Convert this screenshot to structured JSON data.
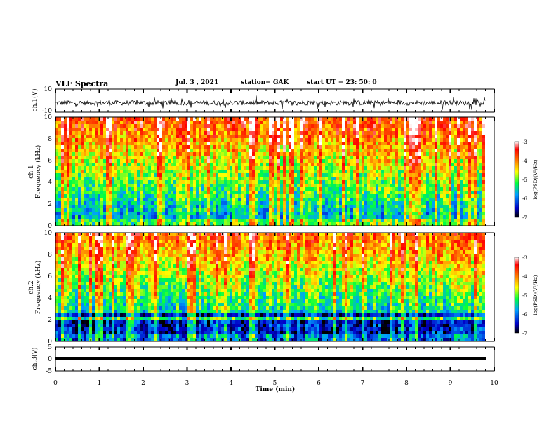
{
  "header": {
    "title": "VLF Spectra",
    "date": "Jul. 3 , 2021",
    "station": "station= GAK",
    "start": "start UT = 23: 50: 0"
  },
  "chart_data": [
    {
      "type": "line",
      "ylabel": "ch.1(V)",
      "ylim": [
        -10,
        10
      ],
      "yticks": [
        "10",
        "-10"
      ],
      "xlim": [
        0,
        10
      ],
      "note": "noisy waveform centered near -2 V"
    },
    {
      "type": "heatmap",
      "ylabel": "ch.1\nFrequency (kHz)",
      "ylabel_line1": "ch.1",
      "ylabel_line2": "Frequency (kHz)",
      "ylim": [
        0,
        10
      ],
      "yticks": [
        "0",
        "2",
        "4",
        "6",
        "8",
        "10"
      ],
      "xlim": [
        0,
        9.8
      ],
      "colorbar": {
        "label": "log(PSD)(V²/Hz)",
        "ticks": [
          "-3",
          "-4",
          "-5",
          "-6",
          "-7"
        ],
        "range": [
          -7,
          -3
        ],
        "colors": [
          "#000000",
          "#0000c8",
          "#00a0ff",
          "#00ff40",
          "#ffff00",
          "#ff7800",
          "#ff0000",
          "#ffffff"
        ]
      }
    },
    {
      "type": "heatmap",
      "ylabel_line1": "ch.2",
      "ylabel_line2": "Frequency (kHz)",
      "ylim": [
        0,
        10
      ],
      "yticks": [
        "0",
        "2",
        "4",
        "6",
        "8",
        "10"
      ],
      "xlim": [
        0,
        9.8
      ],
      "colorbar": {
        "label": "log(PSD)(V²/Hz)",
        "ticks": [
          "-3",
          "-4",
          "-5",
          "-6",
          "-7"
        ],
        "range": [
          -7,
          -3
        ]
      }
    },
    {
      "type": "line",
      "ylabel": "ch.3(V)",
      "ylim": [
        -5,
        5
      ],
      "yticks": [
        "5",
        "0",
        "-5"
      ],
      "xlim": [
        0,
        10
      ],
      "note": "flat thick line near -1 V"
    }
  ],
  "xaxis": {
    "label": "Time (min)",
    "ticks": [
      "0",
      "1",
      "2",
      "3",
      "4",
      "5",
      "6",
      "7",
      "8",
      "9",
      "10"
    ],
    "range": [
      0,
      10
    ]
  }
}
